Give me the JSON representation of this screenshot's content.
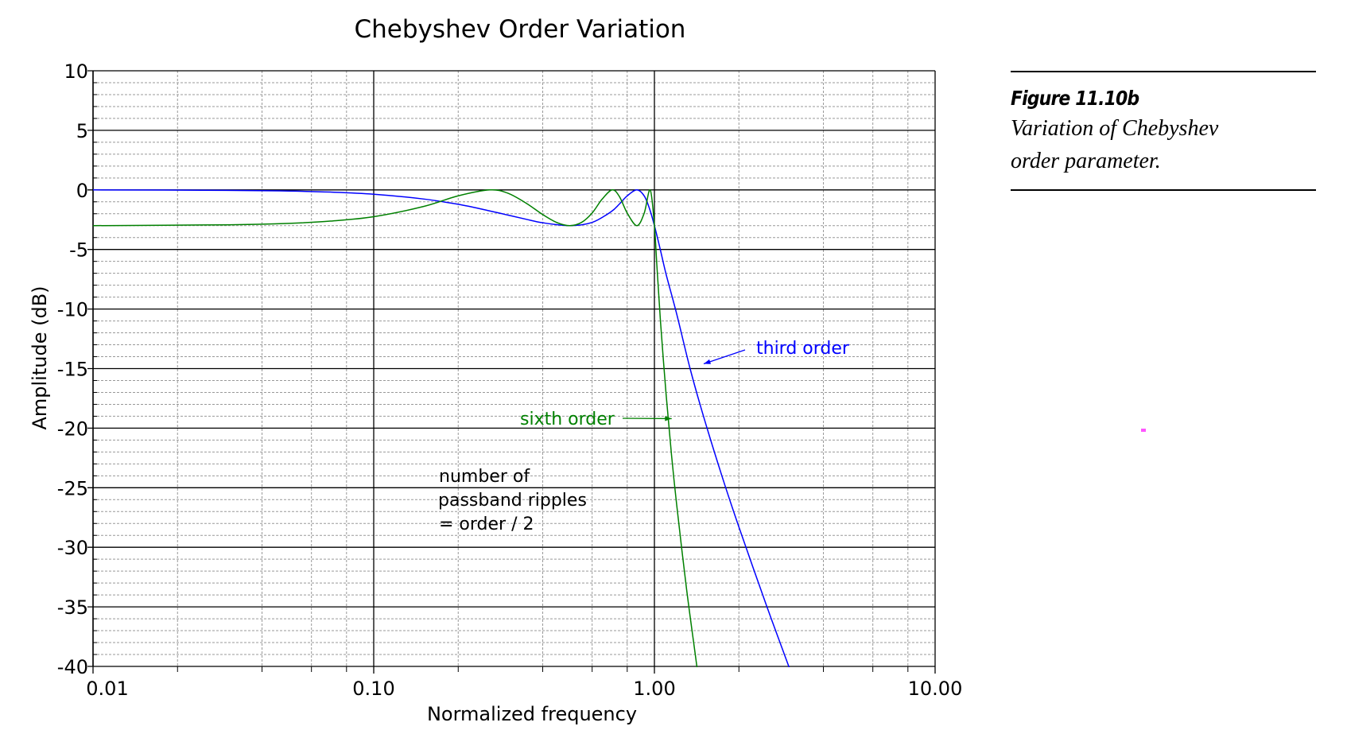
{
  "chart_data": {
    "type": "line",
    "title": "Chebyshev Order Variation",
    "xlabel": "Normalized frequency",
    "ylabel": "Amplitude (dB)",
    "x_scale": "log",
    "xlim": [
      0.01,
      10
    ],
    "ylim": [
      -40,
      10
    ],
    "x_ticks": [
      0.01,
      0.1,
      1,
      10
    ],
    "x_tick_labels": [
      "0.01",
      "0.10",
      "1.00",
      "10.00"
    ],
    "y_ticks": [
      10,
      5,
      0,
      -5,
      -10,
      -15,
      -20,
      -25,
      -30,
      -35,
      -40
    ],
    "y_tick_labels": [
      "10",
      "5",
      "0",
      "-5",
      "-10",
      "-15",
      "-20",
      "-25",
      "-30",
      "-35",
      "-40"
    ],
    "grid": true,
    "series": [
      {
        "color": "#0000ff",
        "points": [
          [
            0.01,
            0
          ],
          [
            0.03,
            -0.035
          ],
          [
            0.05,
            -0.097
          ],
          [
            0.07,
            -0.184
          ],
          [
            0.1,
            -0.363
          ],
          [
            0.15,
            -0.76
          ],
          [
            0.2,
            -1.21
          ],
          [
            0.25,
            -1.68
          ],
          [
            0.3,
            -2.11
          ],
          [
            0.35,
            -2.47
          ],
          [
            0.4,
            -2.76
          ],
          [
            0.5,
            -3.0
          ],
          [
            0.6,
            -2.73
          ],
          [
            0.7,
            -1.84
          ],
          [
            0.75,
            -1.19
          ],
          [
            0.8,
            -0.5
          ],
          [
            0.866,
            0
          ],
          [
            0.92,
            -0.51
          ],
          [
            0.96,
            -1.56
          ],
          [
            1.0,
            -3.0
          ],
          [
            1.05,
            -5.03
          ],
          [
            1.1,
            -7.06
          ],
          [
            1.2,
            -10.4
          ],
          [
            1.34,
            -15.0
          ],
          [
            1.5,
            -19.1
          ],
          [
            1.75,
            -24.2
          ],
          [
            2.0,
            -28.3
          ],
          [
            2.5,
            -34.8
          ],
          [
            3.0,
            -39.9
          ],
          [
            3.05,
            -40.3
          ]
        ]
      },
      {
        "color": "#008000",
        "points": [
          [
            0.01,
            -3.0
          ],
          [
            0.03,
            -2.93
          ],
          [
            0.05,
            -2.81
          ],
          [
            0.07,
            -2.62
          ],
          [
            0.1,
            -2.25
          ],
          [
            0.15,
            -1.4
          ],
          [
            0.2,
            -0.5
          ],
          [
            0.259,
            0
          ],
          [
            0.3,
            -0.27
          ],
          [
            0.35,
            -1.13
          ],
          [
            0.4,
            -2.07
          ],
          [
            0.45,
            -2.75
          ],
          [
            0.5,
            -3.0
          ],
          [
            0.55,
            -2.73
          ],
          [
            0.6,
            -1.94
          ],
          [
            0.65,
            -0.8
          ],
          [
            0.707,
            0
          ],
          [
            0.75,
            -0.55
          ],
          [
            0.8,
            -1.94
          ],
          [
            0.866,
            -3.0
          ],
          [
            0.92,
            -1.94
          ],
          [
            0.966,
            0
          ],
          [
            1.0,
            -3.0
          ],
          [
            1.02,
            -6.3
          ],
          [
            1.05,
            -10.9
          ],
          [
            1.1,
            -17.1
          ],
          [
            1.15,
            -22.2
          ],
          [
            1.2,
            -26.4
          ],
          [
            1.3,
            -33.4
          ],
          [
            1.4,
            -39.1
          ],
          [
            1.42,
            -40.2
          ]
        ]
      }
    ],
    "annotations": [
      {
        "text": "third order",
        "color": "#0000ff",
        "arrow_to": [
          1.46,
          -14.6
        ]
      },
      {
        "text": "sixth order",
        "color": "#008000",
        "arrow_to": [
          1.13,
          -19.2
        ]
      },
      {
        "lines": [
          "number of",
          "passband ripples",
          "= order / 2"
        ],
        "color": "#000000"
      }
    ]
  },
  "caption": {
    "title": "Figure 11.10b",
    "lines": [
      "Variation of Chebyshev",
      "order parameter."
    ]
  },
  "colors": {
    "marker": "#ff55ff"
  }
}
